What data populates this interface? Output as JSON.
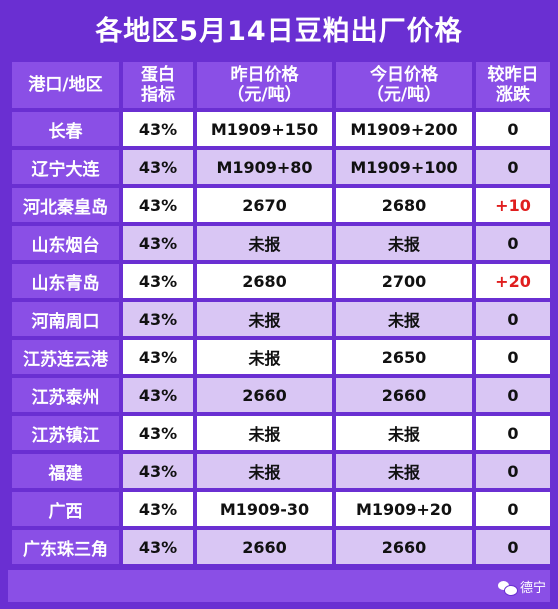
{
  "title": "各地区5月14日豆粕出厂价格",
  "headers": {
    "region": "港口/地区",
    "protein": "蛋白\n指标",
    "yesterday": "昨日价格\n（元/吨）",
    "today": "今日价格\n（元/吨）",
    "change": "较昨日\n涨跌"
  },
  "rows": [
    {
      "region": "长春",
      "protein": "43%",
      "yesterday": "M1909+150",
      "today": "M1909+200",
      "change": "0"
    },
    {
      "region": "辽宁大连",
      "protein": "43%",
      "yesterday": "M1909+80",
      "today": "M1909+100",
      "change": "0"
    },
    {
      "region": "河北秦皇岛",
      "protein": "43%",
      "yesterday": "2670",
      "today": "2680",
      "change": "+10"
    },
    {
      "region": "山东烟台",
      "protein": "43%",
      "yesterday": "未报",
      "today": "未报",
      "change": "0"
    },
    {
      "region": "山东青岛",
      "protein": "43%",
      "yesterday": "2680",
      "today": "2700",
      "change": "+20"
    },
    {
      "region": "河南周口",
      "protein": "43%",
      "yesterday": "未报",
      "today": "未报",
      "change": "0"
    },
    {
      "region": "江苏连云港",
      "protein": "43%",
      "yesterday": "未报",
      "today": "2650",
      "change": "0"
    },
    {
      "region": "江苏泰州",
      "protein": "43%",
      "yesterday": "2660",
      "today": "2660",
      "change": "0"
    },
    {
      "region": "江苏镇江",
      "protein": "43%",
      "yesterday": "未报",
      "today": "未报",
      "change": "0"
    },
    {
      "region": "福建",
      "protein": "43%",
      "yesterday": "未报",
      "today": "未报",
      "change": "0"
    },
    {
      "region": "广西",
      "protein": "43%",
      "yesterday": "M1909-30",
      "today": "M1909+20",
      "change": "0"
    },
    {
      "region": "广东珠三角",
      "protein": "43%",
      "yesterday": "2660",
      "today": "2660",
      "change": "0"
    }
  ],
  "watermark": "德宁",
  "colors": {
    "background": "#6a2fd2",
    "header_cell": "#8a4fe6",
    "row_light": "#ffffff",
    "row_lavender": "#d9c6f4",
    "increase": "#e01e1e"
  }
}
